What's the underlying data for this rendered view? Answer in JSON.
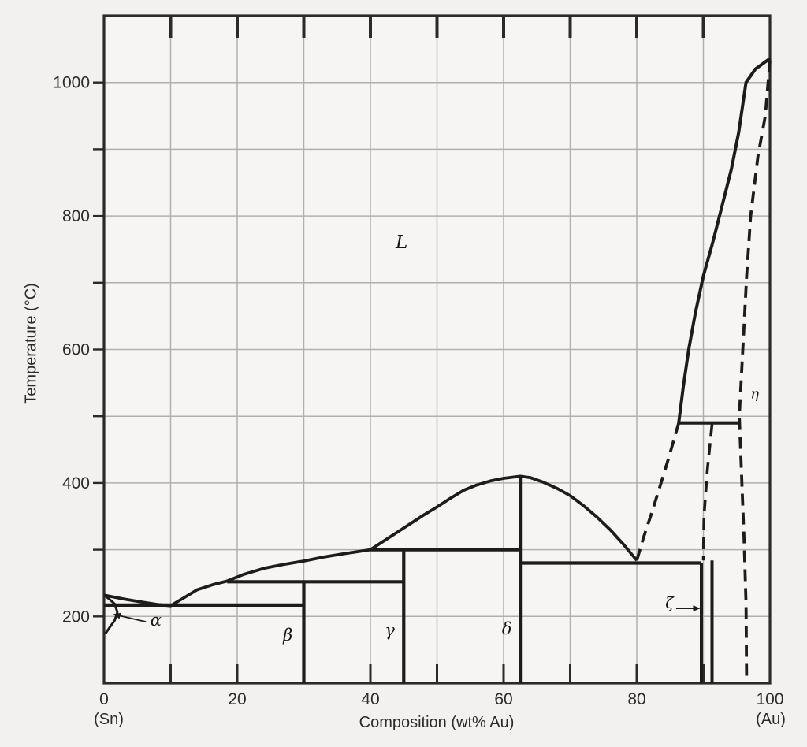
{
  "page": {
    "background": "#f2f1ef",
    "description_visible_text_only": true
  },
  "chart_data": {
    "type": "line",
    "title": "",
    "xlabel": "Composition (wt% Au)",
    "ylabel": "Temperature (°C)",
    "x_endpoint_labels": {
      "left": "(Sn)",
      "right": "(Au)"
    },
    "xlim": [
      0,
      100
    ],
    "ylim": [
      100,
      1100
    ],
    "x_tick_labels": [
      0,
      20,
      40,
      60,
      80,
      100
    ],
    "y_tick_labels": [
      200,
      400,
      600,
      800,
      1000
    ],
    "x_grid": [
      10,
      20,
      30,
      40,
      50,
      60,
      70,
      80,
      90
    ],
    "y_grid": [
      200,
      300,
      400,
      500,
      600,
      700,
      800,
      900,
      1000
    ],
    "grid": true,
    "legend": "none",
    "colors": {
      "line": "#1c1c1c",
      "grid": "#b0b0b0",
      "frame": "#2a2a2a",
      "text": "#2b2b2b",
      "plot_bg": "#f6f5f3"
    },
    "series": [
      {
        "name": "liquidus-sn-side",
        "style": "solid",
        "width": 3.8,
        "points": [
          [
            0,
            232
          ],
          [
            3,
            226
          ],
          [
            6,
            221
          ],
          [
            8,
            218
          ],
          [
            10,
            216
          ],
          [
            12,
            228
          ],
          [
            14,
            240
          ],
          [
            16.5,
            248
          ],
          [
            18.5,
            253
          ],
          [
            21,
            263
          ],
          [
            24,
            272
          ],
          [
            27,
            278
          ],
          [
            30,
            283
          ],
          [
            33,
            289
          ],
          [
            36,
            294
          ],
          [
            40,
            300
          ]
        ]
      },
      {
        "name": "liquidus-central-dome",
        "style": "solid",
        "width": 3.8,
        "points": [
          [
            40,
            300
          ],
          [
            42,
            313
          ],
          [
            44,
            326
          ],
          [
            46,
            339
          ],
          [
            48,
            352
          ],
          [
            50,
            364
          ],
          [
            52,
            377
          ],
          [
            54,
            389
          ],
          [
            56,
            397
          ],
          [
            58,
            403
          ],
          [
            60,
            407
          ],
          [
            62.5,
            410
          ],
          [
            64,
            408
          ],
          [
            66,
            401
          ],
          [
            68,
            392
          ],
          [
            70,
            381
          ],
          [
            72,
            366
          ],
          [
            74,
            349
          ],
          [
            76,
            330
          ],
          [
            78,
            308
          ],
          [
            80,
            284
          ]
        ]
      },
      {
        "name": "liquidus-au-side-steep",
        "style": "solid",
        "width": 4,
        "points": [
          [
            86.3,
            490
          ],
          [
            87.0,
            545
          ],
          [
            87.8,
            600
          ],
          [
            88.8,
            655
          ],
          [
            90.0,
            710
          ],
          [
            91.4,
            760
          ],
          [
            92.8,
            815
          ],
          [
            94.2,
            870
          ],
          [
            95.3,
            925
          ],
          [
            96.4,
            1000
          ],
          [
            97.8,
            1020
          ],
          [
            100,
            1036
          ]
        ]
      },
      {
        "name": "liquidus-dashed-80-to-86",
        "style": "dashed",
        "width": 3.8,
        "points": [
          [
            80,
            284
          ],
          [
            81,
            318
          ],
          [
            82.2,
            354
          ],
          [
            83.4,
            392
          ],
          [
            84.8,
            438
          ],
          [
            86.3,
            490
          ]
        ]
      },
      {
        "name": "eta-boundary-dashed",
        "style": "dashed",
        "width": 3.8,
        "points": [
          [
            100,
            1033
          ],
          [
            99.3,
            950
          ],
          [
            98.2,
            890
          ],
          [
            97.1,
            800
          ],
          [
            96.5,
            710
          ],
          [
            96.0,
            615
          ],
          [
            95.4,
            500
          ],
          [
            95.7,
            420
          ],
          [
            96.1,
            320
          ],
          [
            96.4,
            220
          ],
          [
            96.5,
            100
          ]
        ]
      },
      {
        "name": "zeta-upper-boundary-dashed",
        "style": "dashed",
        "width": 3.6,
        "points": [
          [
            91.3,
            488
          ],
          [
            90.6,
            420
          ],
          [
            90.1,
            350
          ],
          [
            90.0,
            284
          ]
        ]
      },
      {
        "name": "alpha-solidus",
        "style": "solid",
        "width": 3,
        "points": [
          [
            0,
            232
          ],
          [
            0.9,
            225
          ],
          [
            1.7,
            218
          ]
        ]
      },
      {
        "name": "alpha-solvus",
        "style": "solid",
        "width": 3,
        "points": [
          [
            1.7,
            216
          ],
          [
            2.0,
            206
          ],
          [
            1.6,
            194
          ],
          [
            0.8,
            183
          ],
          [
            0.2,
            174
          ]
        ]
      },
      {
        "name": "eutectic-line-217",
        "style": "solid",
        "width": 4.2,
        "points": [
          [
            0,
            217
          ],
          [
            30,
            217
          ]
        ]
      },
      {
        "name": "peritectic-line-252",
        "style": "solid",
        "width": 4.2,
        "points": [
          [
            18.5,
            252
          ],
          [
            45,
            252
          ]
        ]
      },
      {
        "name": "peritectic-line-300",
        "style": "solid",
        "width": 4.2,
        "points": [
          [
            40,
            300
          ],
          [
            62.5,
            300
          ]
        ]
      },
      {
        "name": "eutectic-line-280",
        "style": "solid",
        "width": 4.2,
        "points": [
          [
            62.5,
            280
          ],
          [
            89.7,
            280
          ]
        ]
      },
      {
        "name": "peritectic-line-490",
        "style": "solid",
        "width": 4.2,
        "points": [
          [
            86.3,
            490
          ],
          [
            95.3,
            490
          ]
        ]
      },
      {
        "name": "beta-phase-boundary",
        "style": "solid",
        "width": 4.2,
        "points": [
          [
            30,
            252
          ],
          [
            30,
            100
          ]
        ]
      },
      {
        "name": "gamma-phase-boundary",
        "style": "solid",
        "width": 4.2,
        "points": [
          [
            45,
            300
          ],
          [
            45,
            100
          ]
        ]
      },
      {
        "name": "delta-phase-boundary",
        "style": "solid",
        "width": 4.2,
        "points": [
          [
            62.5,
            410
          ],
          [
            62.5,
            100
          ]
        ]
      },
      {
        "name": "zeta-left-boundary",
        "style": "solid",
        "width": 4,
        "points": [
          [
            89.7,
            280
          ],
          [
            89.7,
            100
          ]
        ]
      },
      {
        "name": "zeta-right-boundary",
        "style": "solid",
        "width": 4,
        "points": [
          [
            91.3,
            284
          ],
          [
            91.3,
            100
          ]
        ]
      }
    ],
    "annotations": [
      {
        "text": "L",
        "x": 44.7,
        "y": 752,
        "font_size": 23
      },
      {
        "text": "α",
        "x": 7.8,
        "y": 186,
        "font_size": 21,
        "arrow": {
          "from": [
            6.3,
            192
          ],
          "to": [
            1.5,
            203
          ]
        }
      },
      {
        "text": "β",
        "x": 27.6,
        "y": 164,
        "font_size": 21
      },
      {
        "text": "γ",
        "x": 42.9,
        "y": 171,
        "font_size": 21
      },
      {
        "text": "δ",
        "x": 60.5,
        "y": 173,
        "font_size": 21
      },
      {
        "text": "ζ",
        "x": 84.9,
        "y": 213,
        "font_size": 19,
        "arrow": {
          "from": [
            85.9,
            212
          ],
          "to": [
            89.4,
            212
          ]
        }
      },
      {
        "text": "η",
        "x": 97.7,
        "y": 527,
        "font_size": 18
      }
    ],
    "invariant_points_read_from_chart": {
      "sn_melting_c": 232,
      "eutectic_sn_side": {
        "wt_pct_au": 10,
        "temp_c": 217
      },
      "peritectic_beta": {
        "wt_pct_au": 30,
        "temp_c": 252
      },
      "peritectic_gamma": {
        "wt_pct_au": 45,
        "temp_c": 300
      },
      "congruent_delta_max": {
        "wt_pct_au": 62.5,
        "temp_c": 410
      },
      "eutectic_au_side": {
        "wt_pct_au": 80,
        "temp_c": 280
      },
      "peritectic_zeta": {
        "temp_c": 490
      },
      "liquidus_at_right_edge_c": 1035
    }
  }
}
